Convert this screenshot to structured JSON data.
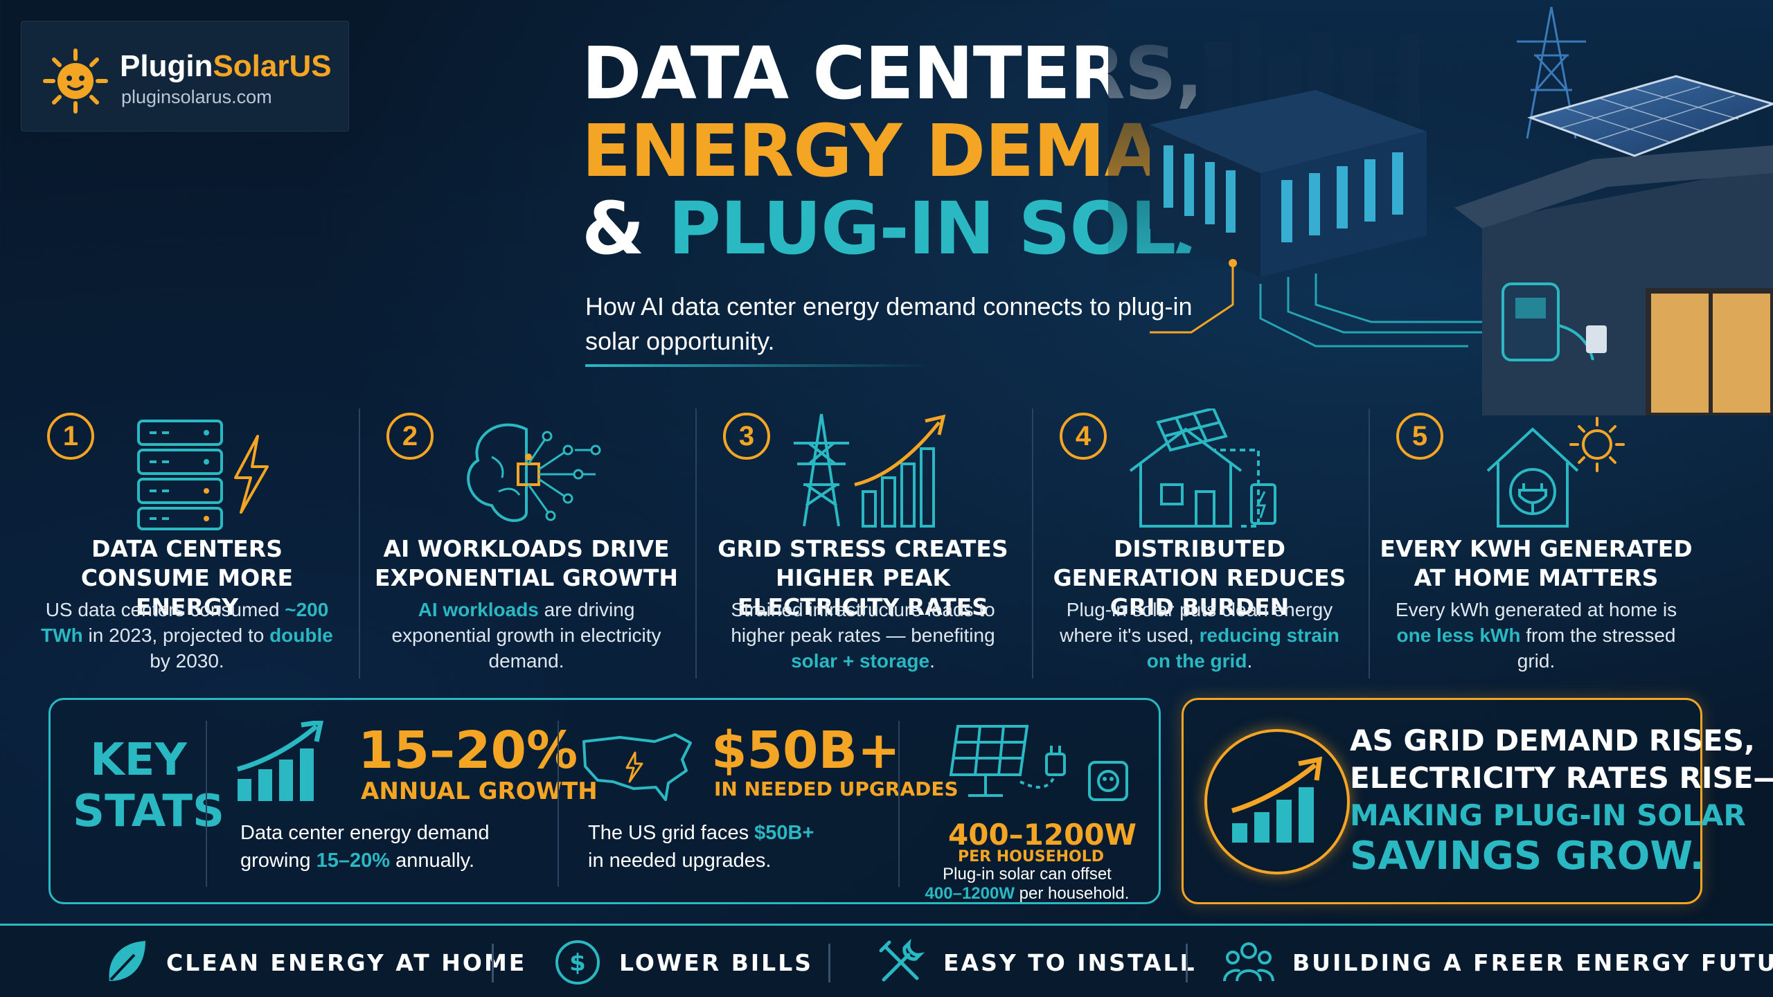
{
  "brand": {
    "name_main": "Plugin",
    "name_accent": "SolarUS",
    "url": "pluginsolarus.com"
  },
  "title": {
    "line1": "DATA CENTERS,",
    "line2": "ENERGY DEMAND",
    "line3_amp": "&",
    "line3_rest": "PLUG-IN SOLAR",
    "subtitle": "How AI data center energy demand connects to plug-in solar opportunity."
  },
  "steps": [
    {
      "number": "1",
      "icon": "server-lightning-icon",
      "heading": "DATA CENTERS CONSUME MORE ENERGY",
      "desc_parts": [
        "US data centers consumed ",
        "~200 TWh",
        " in 2023, projected to ",
        "double",
        " by 2030."
      ]
    },
    {
      "number": "2",
      "icon": "brain-chip-icon",
      "heading": "AI WORKLOADS DRIVE EXPONENTIAL GROWTH",
      "desc_parts": [
        "",
        "AI workloads",
        " are driving exponential growth in electricity demand."
      ]
    },
    {
      "number": "3",
      "icon": "power-tower-rising-chart-icon",
      "heading": "GRID STRESS CREATES HIGHER PEAK ELECTRICITY RATES",
      "desc_parts": [
        "Strained infrastructure leads to higher peak rates — benefiting ",
        "solar + storage",
        "."
      ]
    },
    {
      "number": "4",
      "icon": "house-solar-battery-icon",
      "heading": "DISTRIBUTED GENERATION REDUCES GRID BURDEN",
      "desc_parts": [
        "Plug-in solar puts clean energy where it's used, ",
        "reducing strain on the grid",
        "."
      ]
    },
    {
      "number": "5",
      "icon": "house-plug-sun-icon",
      "heading": "EVERY KWH GENERATED AT HOME MATTERS",
      "desc_parts": [
        "Every kWh generated at home is ",
        "one less kWh",
        " from the stressed grid."
      ]
    }
  ],
  "key_stats": {
    "label_line1": "KEY",
    "label_line2": "STATS",
    "items": [
      {
        "icon": "growth-chart-icon",
        "big": "15–20%",
        "sub": "ANNUAL GROWTH",
        "desc_a": "Data center energy demand",
        "desc_b": "growing ",
        "desc_hl": "15–20%",
        "desc_c": " annually."
      },
      {
        "icon": "us-map-lightning-icon",
        "big": "$50B+",
        "sub": "IN NEEDED UPGRADES",
        "desc_a": "The US grid faces ",
        "desc_hl": "$50B+",
        "desc_b": "in needed upgrades."
      },
      {
        "icon": "solar-panel-plug-icon",
        "big": "400–1200W",
        "sub": "PER HOUSEHOLD",
        "desc_a": "Plug-in solar can offset",
        "desc_hl": "400–1200W",
        "desc_b": " per household."
      }
    ]
  },
  "callout": {
    "line1": "AS GRID DEMAND RISES,",
    "line2": "ELECTRICITY RATES RISE—",
    "line3": "MAKING PLUG-IN SOLAR",
    "line4": "SAVINGS GROW."
  },
  "footer": [
    {
      "icon": "leaf-icon",
      "label": "CLEAN ENERGY AT HOME"
    },
    {
      "icon": "dollar-coin-icon",
      "label": "LOWER BILLS"
    },
    {
      "icon": "tools-icon",
      "label": "EASY TO INSTALL"
    },
    {
      "icon": "community-icon",
      "label": "BUILDING A FREER ENERGY FUTURE"
    }
  ],
  "colors": {
    "background": "#07182b",
    "orange": "#f5a524",
    "teal": "#2ab8c3",
    "white": "#ffffff"
  }
}
